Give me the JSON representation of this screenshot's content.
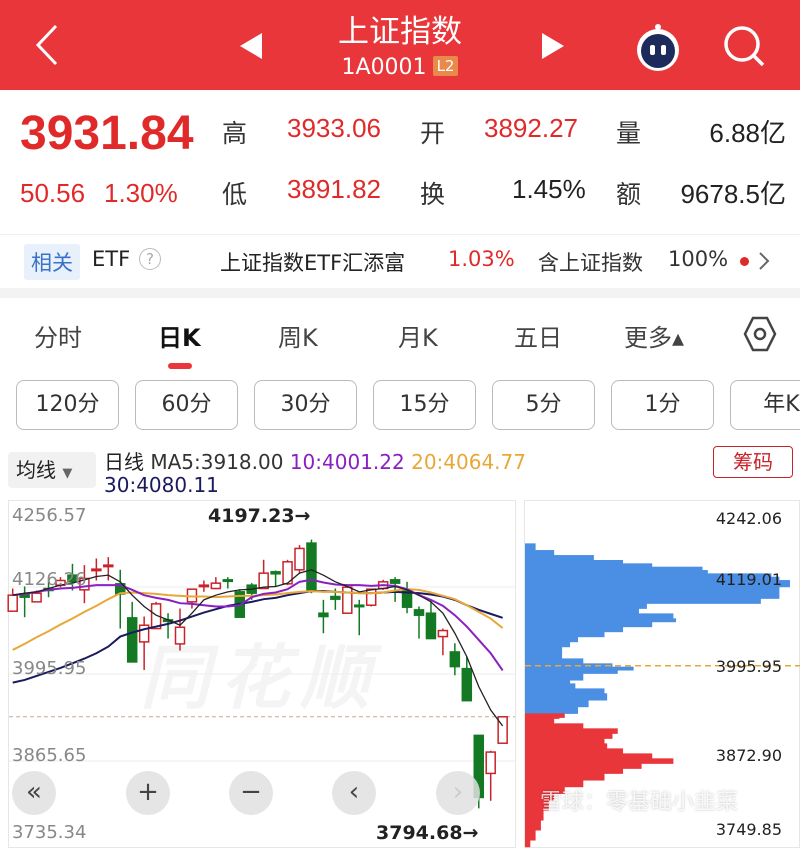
{
  "header": {
    "title": "上证指数",
    "code": "1A0001",
    "badge": "L2",
    "icons": [
      "back-icon",
      "prev-stock-icon",
      "next-stock-icon",
      "robot-assistant-icon",
      "search-icon"
    ]
  },
  "quote": {
    "price": "3931.84",
    "change": "50.56",
    "change_pct": "1.30%",
    "high_label": "高",
    "high": "3933.06",
    "open_label": "开",
    "open": "3892.27",
    "volume_label": "量",
    "volume": "6.88亿",
    "low_label": "低",
    "low": "3891.82",
    "turnover_label": "换",
    "turnover": "1.45%",
    "amount_label": "额",
    "amount": "9678.5亿"
  },
  "etf": {
    "tag": "相关",
    "label": "ETF",
    "name": "上证指数ETF汇添富",
    "pct": "1.03%",
    "holding": "含上证指数",
    "holding_pct": "100%"
  },
  "tabs": [
    "分时",
    "日K",
    "周K",
    "月K",
    "五日",
    "更多▴"
  ],
  "active_tab": 1,
  "periods": [
    "120分",
    "60分",
    "30分",
    "15分",
    "5分",
    "1分",
    "年K"
  ],
  "chart_header": {
    "ma_select": "均线",
    "period": "日线",
    "ma5": "MA5:3918.00",
    "ma10": "10:4001.22",
    "ma20": "20:4064.77",
    "ma30": "30:4080.11",
    "chips_button": "筹码"
  },
  "colors": {
    "brand": "#e8363a",
    "up": "#c8232a",
    "down": "#137a23",
    "ma5": "#222222",
    "ma10": "#8a1fc2",
    "ma20": "#e8a838",
    "ma30": "#1a1a5e",
    "chip_profit": "#e8363a",
    "chip_loss": "#4a8fe3"
  },
  "watermarks": [
    "同花顺",
    "雪球：零基础小韭菜"
  ],
  "controls": [
    "«",
    "+",
    "−",
    "‹",
    "›"
  ],
  "chart_data": [
    {
      "type": "candlestick",
      "y_ticks": [
        "4256.57",
        "4126.26",
        "3995.95",
        "3865.65",
        "3735.34"
      ],
      "ylim": [
        3735.34,
        4256.57
      ],
      "annotations": {
        "max": "4197.23→",
        "min": "3794.68→"
      },
      "current_price": 3931.84,
      "ohlc": [
        [
          4090,
          4124,
          4090,
          4114
        ],
        [
          4116,
          4127,
          4081,
          4111
        ],
        [
          4104,
          4121,
          4104,
          4117
        ],
        [
          4124,
          4136,
          4111,
          4121
        ],
        [
          4129,
          4141,
          4126,
          4136
        ],
        [
          4144,
          4161,
          4121,
          4134
        ],
        [
          4122,
          4159,
          4102,
          4139
        ],
        [
          4151,
          4169,
          4136,
          4153
        ],
        [
          4157,
          4171,
          4136,
          4159
        ],
        [
          4131,
          4152,
          4064,
          4116
        ],
        [
          4080,
          4104,
          4014,
          4014
        ],
        [
          4044,
          4082,
          4002,
          4069
        ],
        [
          4064,
          4104,
          4064,
          4101
        ],
        [
          4077,
          4087,
          4049,
          4075
        ],
        [
          4041,
          4094,
          4031,
          4066
        ],
        [
          4104,
          4124,
          4094,
          4123
        ],
        [
          4127,
          4136,
          4119,
          4129
        ],
        [
          4124,
          4141,
          4123,
          4132
        ],
        [
          4137,
          4141,
          4124,
          4135
        ],
        [
          4119,
          4123,
          4081,
          4081
        ],
        [
          4129,
          4132,
          4107,
          4117
        ],
        [
          4124,
          4167,
          4124,
          4147
        ],
        [
          4149,
          4151,
          4126,
          4146
        ],
        [
          4131,
          4167,
          4129,
          4164
        ],
        [
          4152,
          4189,
          4147,
          4184
        ],
        [
          4192,
          4197.23,
          4117,
          4122
        ],
        [
          4087,
          4107,
          4057,
          4082
        ],
        [
          4112,
          4124,
          4092,
          4108
        ],
        [
          4087,
          4129,
          4086,
          4126
        ],
        [
          4099,
          4107,
          4054,
          4097
        ],
        [
          4099,
          4124,
          4097,
          4123
        ],
        [
          4124,
          4137,
          4122,
          4134
        ],
        [
          4137,
          4141,
          4104,
          4132
        ],
        [
          4122,
          4134,
          4087,
          4096
        ],
        [
          4092,
          4097,
          4049,
          4084
        ],
        [
          4087,
          4107,
          4049,
          4049
        ],
        [
          4052,
          4064,
          4024,
          4061
        ],
        [
          4029,
          4042,
          3994,
          4007
        ],
        [
          4004,
          4022,
          3956,
          3956
        ],
        [
          3904,
          3904,
          3794.68,
          3811
        ],
        [
          3847,
          3881,
          3806,
          3879
        ],
        [
          3892.27,
          3933.06,
          3891.82,
          3931.84
        ]
      ],
      "ma5": [
        4114,
        4117,
        4119,
        4124,
        4129,
        4132,
        4137,
        4142,
        4144,
        4134,
        4114,
        4097,
        4084,
        4077,
        4069,
        4087,
        4107,
        4114,
        4119,
        4122,
        4123,
        4126,
        4127,
        4132,
        4147,
        4152,
        4144,
        4134,
        4127,
        4119,
        4122,
        4124,
        4127,
        4122,
        4114,
        4104,
        4087,
        4057,
        4022,
        3977,
        3942,
        3918
      ],
      "ma10": [
        4114,
        4116,
        4119,
        4122,
        4124,
        4125,
        4127,
        4129,
        4129,
        4129,
        4122,
        4114,
        4110,
        4107,
        4102,
        4101,
        4099,
        4097,
        4097,
        4099,
        4111,
        4116,
        4118,
        4123,
        4134,
        4137,
        4133,
        4130,
        4129,
        4129,
        4128,
        4129,
        4128,
        4123,
        4114,
        4107,
        4098,
        4084,
        4067,
        4047,
        4027,
        4001.22
      ],
      "ma20": [
        4032,
        4041,
        4051,
        4060,
        4070,
        4079,
        4089,
        4098,
        4108,
        4117,
        4118,
        4117,
        4116,
        4114,
        4113,
        4112,
        4112,
        4111,
        4112,
        4113,
        4113,
        4114,
        4115,
        4117,
        4119,
        4120,
        4119,
        4119,
        4118,
        4117,
        4117,
        4118,
        4121,
        4123,
        4122,
        4118,
        4113,
        4108,
        4099,
        4089,
        4079,
        4064.77
      ],
      "ma30": [
        3983,
        3987,
        3993,
        3999,
        4005,
        4012,
        4019,
        4027,
        4037,
        4052,
        4058,
        4063,
        4067,
        4071,
        4076,
        4082,
        4088,
        4093,
        4098,
        4101,
        4104,
        4108,
        4110,
        4114,
        4117,
        4120,
        4120,
        4119,
        4118,
        4117,
        4117,
        4118,
        4119,
        4118,
        4117,
        4115,
        4112,
        4107,
        4099,
        4092,
        4086,
        4080.11
      ]
    },
    {
      "type": "chip-distribution",
      "y_ticks": [
        "4242.06",
        "4119.01",
        "3995.95",
        "3872.90",
        "3749.85"
      ],
      "avg_cost": 3995.95,
      "prices": [
        4171.3,
        4164.4,
        4155.2,
        4148.3,
        4141.5,
        4136.9,
        4132.3,
        4127.7,
        4123.1,
        4118.5,
        4113.9,
        4104.7,
        4095.6,
        4088.7,
        4081.8,
        4074.9,
        4068.0,
        4061.1,
        4056.5,
        4049.7,
        4042.8,
        4035.9,
        4029.0,
        4022.1,
        4012.9,
        4006.0,
        3999.2,
        3994.6,
        3990.0,
        3985.4,
        3976.2,
        3971.6,
        3964.7,
        3957.9,
        3948.7,
        3939.5,
        3930.3,
        3924.8,
        3923.5,
        3916.6,
        3909.7,
        3902.8,
        3895.9,
        3889.0,
        3882.1,
        3875.2,
        3868.4,
        3861.5,
        3854.6,
        3847.7,
        3838.5,
        3829.3,
        3820.1,
        3811.0,
        3797.2,
        3783.4,
        3769.7,
        3755.9,
        3746.7
      ],
      "amounts": [
        0,
        4,
        11,
        26,
        37,
        48,
        67,
        69,
        93,
        96,
        100,
        96,
        96,
        89,
        46,
        43,
        56,
        57,
        48,
        37,
        30,
        20,
        17,
        14,
        14,
        22,
        33,
        41,
        35,
        22,
        17,
        19,
        30,
        31,
        24,
        20,
        15,
        13,
        11,
        22,
        35,
        33,
        30,
        31,
        37,
        48,
        56,
        44,
        37,
        30,
        22,
        15,
        11,
        9,
        7,
        6,
        4,
        2,
        0
      ]
    }
  ]
}
